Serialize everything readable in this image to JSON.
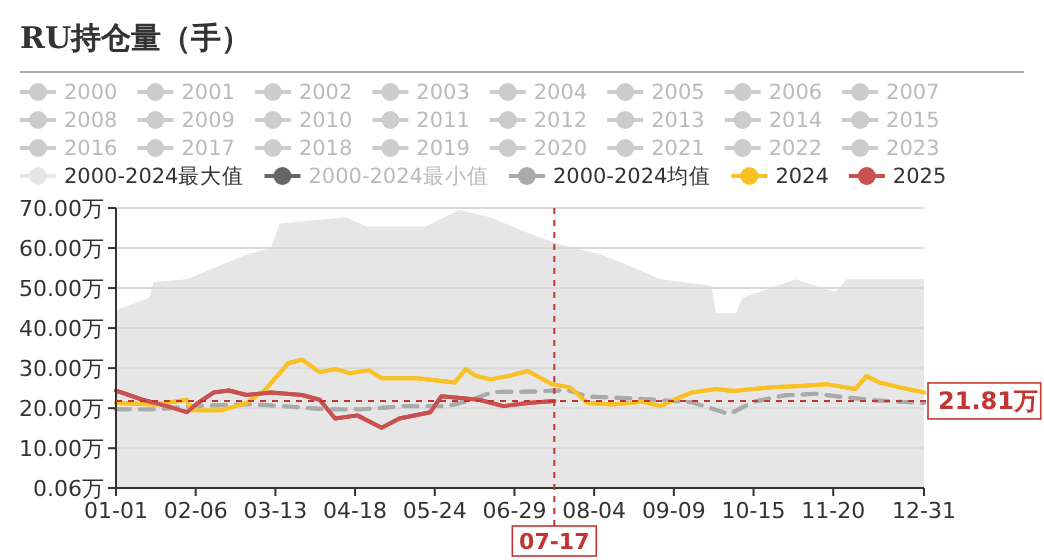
{
  "chart_data": {
    "type": "line",
    "title": "RU持仓量（手）",
    "legend": "top",
    "grid": "y",
    "marker": "none",
    "xlim": [
      "--01-01",
      "--12-31"
    ],
    "xticks": [
      {
        "value": "--01-01",
        "label": "01-01"
      },
      {
        "value": "--02-06",
        "label": "02-06"
      },
      {
        "value": "--03-13",
        "label": "03-13"
      },
      {
        "value": "--04-18",
        "label": "04-18"
      },
      {
        "value": "--05-24",
        "label": "05-24"
      },
      {
        "value": "--06-29",
        "label": "06-29"
      },
      {
        "value": "--08-04",
        "label": "08-04"
      },
      {
        "value": "--09-09",
        "label": "09-09"
      },
      {
        "value": "--10-15",
        "label": "10-15"
      },
      {
        "value": "--11-20",
        "label": "11-20"
      },
      {
        "value": "--12-31",
        "label": "12-31"
      }
    ],
    "ylim": [
      0.06,
      70
    ],
    "yticks": [
      {
        "value": 0.06,
        "label": "0.06万"
      },
      {
        "value": 10,
        "label": "10.00万"
      },
      {
        "value": 20,
        "label": "20.00万"
      },
      {
        "value": 30,
        "label": "30.00万"
      },
      {
        "value": 40,
        "label": "40.00万"
      },
      {
        "value": 50,
        "label": "50.00万"
      },
      {
        "value": 60,
        "label": "60.00万"
      },
      {
        "value": 70,
        "label": "70.00万"
      }
    ],
    "ref_lines": [
      {
        "axis": "x",
        "value": "--07-17",
        "label": "07-17",
        "color": "#c23531"
      },
      {
        "axis": "y",
        "value": 21.81,
        "label": "21.81万",
        "color": "#c23531"
      }
    ],
    "series": [
      {
        "name": "2000",
        "color": "#cccccc"
      },
      {
        "name": "2001",
        "color": "#cccccc"
      },
      {
        "name": "2002",
        "color": "#cccccc"
      },
      {
        "name": "2003",
        "color": "#cccccc"
      },
      {
        "name": "2004",
        "color": "#cccccc"
      },
      {
        "name": "2005",
        "color": "#cccccc"
      },
      {
        "name": "2006",
        "color": "#cccccc"
      },
      {
        "name": "2007",
        "color": "#cccccc"
      },
      {
        "name": "2008",
        "color": "#cccccc"
      },
      {
        "name": "2009",
        "color": "#cccccc"
      },
      {
        "name": "2010",
        "color": "#cccccc"
      },
      {
        "name": "2011",
        "color": "#cccccc"
      },
      {
        "name": "2012",
        "color": "#cccccc"
      },
      {
        "name": "2013",
        "color": "#cccccc"
      },
      {
        "name": "2014",
        "color": "#cccccc"
      },
      {
        "name": "2015",
        "color": "#cccccc"
      },
      {
        "name": "2016",
        "color": "#cccccc"
      },
      {
        "name": "2017",
        "color": "#cccccc"
      },
      {
        "name": "2018",
        "color": "#cccccc"
      },
      {
        "name": "2019",
        "color": "#cccccc"
      },
      {
        "name": "2020",
        "color": "#cccccc"
      },
      {
        "name": "2021",
        "color": "#cccccc"
      },
      {
        "name": "2022",
        "color": "#cccccc"
      },
      {
        "name": "2023",
        "color": "#cccccc"
      },
      {
        "name": "2000-2024最大值",
        "type": "area",
        "color": "#e6e6e6",
        "x": [
          "--01-01",
          "--01-16",
          "--01-18",
          "--02-02",
          "--02-29",
          "--03-11",
          "--03-15",
          "--04-14",
          "--04-23",
          "--05-20",
          "--06-04",
          "--06-18",
          "--07-04",
          "--07-19",
          "--08-07",
          "--08-21",
          "--09-03",
          "--09-26",
          "--09-28",
          "--10-07",
          "--10-10",
          "--11-03",
          "--11-21",
          "--11-26",
          "--12-31"
        ],
        "values": [
          44.5,
          47.6,
          51.5,
          52.2,
          58.4,
          60,
          66.1,
          67.7,
          65.4,
          65.4,
          69.5,
          67.7,
          64,
          61,
          58.4,
          55.3,
          52.2,
          50.6,
          43.7,
          43.7,
          47.6,
          52.2,
          49,
          52.2,
          52.2
        ]
      },
      {
        "name": "2000-2024最小值",
        "color": "#666666"
      },
      {
        "name": "2000-2024均值",
        "color": "#aaaaaa",
        "line_style": "dashed",
        "x": [
          "--01-01",
          "--01-19",
          "--02-06",
          "--03-01",
          "--03-16",
          "--04-05",
          "--04-20",
          "--05-10",
          "--05-30",
          "--06-09",
          "--06-19",
          "--07-09",
          "--07-23",
          "--08-01",
          "--08-20",
          "--09-03",
          "--09-17",
          "--10-04",
          "--10-15",
          "--10-29",
          "--11-12",
          "--11-26",
          "--12-10",
          "--12-31"
        ],
        "values": [
          19.7,
          19.7,
          20.5,
          21,
          20.5,
          19.7,
          19.7,
          20.5,
          20.5,
          22,
          24,
          24.2,
          24.5,
          22.9,
          22.5,
          22,
          21.5,
          18.5,
          21.6,
          23.2,
          23.6,
          22.7,
          21.9,
          21.3
        ]
      },
      {
        "name": "2024",
        "color": "#f9c123",
        "x": [
          "--01-01",
          "--01-19",
          "--02-02",
          "--02-04",
          "--02-18",
          "--02-29",
          "--03-08",
          "--03-19",
          "--03-25",
          "--04-02",
          "--04-09",
          "--04-16",
          "--04-24",
          "--04-30",
          "--05-16",
          "--06-02",
          "--06-07",
          "--06-11",
          "--06-18",
          "--06-26",
          "--07-05",
          "--07-16",
          "--07-24",
          "--08-01",
          "--08-12",
          "--08-26",
          "--09-03",
          "--09-09",
          "--09-17",
          "--09-28",
          "--10-06",
          "--10-23",
          "--11-03",
          "--11-17",
          "--11-30",
          "--12-05",
          "--12-11",
          "--12-20",
          "--12-31"
        ],
        "values": [
          21.3,
          20.9,
          22.1,
          19.5,
          19.5,
          21.3,
          24.4,
          31.3,
          32.1,
          29,
          29.8,
          28.7,
          29.5,
          27.5,
          27.5,
          26.4,
          29.8,
          28.2,
          27.2,
          28,
          29.3,
          26,
          25.2,
          21.3,
          20.9,
          21.6,
          20.5,
          22.1,
          23.9,
          24.8,
          24.3,
          25.2,
          25.5,
          26,
          24.8,
          28,
          26.4,
          25.2,
          23.9
        ]
      },
      {
        "name": "2025",
        "color": "#c9514f",
        "x": [
          "--01-01",
          "--01-13",
          "--01-24",
          "--02-02",
          "--02-07",
          "--02-14",
          "--02-21",
          "--02-29",
          "--03-11",
          "--03-25",
          "--04-02",
          "--04-09",
          "--04-19",
          "--04-30",
          "--05-08",
          "--05-22",
          "--05-27",
          "--06-13",
          "--06-24",
          "--07-05",
          "--07-17"
        ],
        "values": [
          24.4,
          22.1,
          20.5,
          19,
          21.3,
          23.9,
          24.4,
          23.3,
          23.9,
          23.3,
          22.1,
          17.4,
          18.2,
          15.1,
          17.4,
          19,
          23,
          22.1,
          20.5,
          21.3,
          21.81
        ]
      }
    ]
  }
}
